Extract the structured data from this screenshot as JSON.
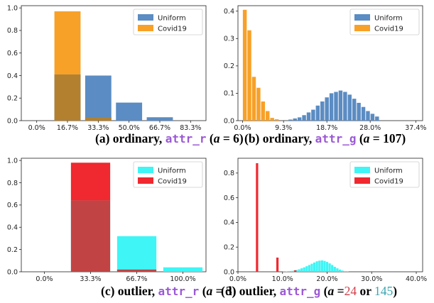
{
  "colors": {
    "blue": "#5b8cc3",
    "orange": "#f7a128",
    "orange_overlap": "#b3802f",
    "cyan": "#3ff5f5",
    "red": "#f0282f",
    "red_overlap": "#c24343",
    "attr_purple": "#9b59d6",
    "num_teal": "#3aa6b0",
    "num_red": "#d1404a"
  },
  "chart_data": [
    {
      "type": "bar",
      "panel": "a",
      "overlay": true,
      "xticks": [
        "0.0%",
        "16.7%",
        "33.3%",
        "50.0%",
        "66.7%",
        "83.3%"
      ],
      "yticks": [
        "0.0",
        "0.2",
        "0.4",
        "0.6",
        "0.8",
        "1.0"
      ],
      "ylim": [
        0,
        1.02
      ],
      "xlim": [
        -0.5,
        5.5
      ],
      "legend_position": "top-right",
      "grid": false,
      "series": [
        {
          "name": "Uniform",
          "color_key": "blue",
          "x": [
            1,
            2,
            3,
            4
          ],
          "values": [
            0.41,
            0.4,
            0.16,
            0.03
          ]
        },
        {
          "name": "Covid19",
          "color_key": "orange",
          "x": [
            1,
            2
          ],
          "values": [
            0.97,
            0.03
          ]
        }
      ],
      "caption": {
        "prefix": "(a) ordinary, ",
        "attr": "attr_r",
        "suffix_open": " (",
        "a": "a",
        "eq": " = 6)",
        "num": ""
      }
    },
    {
      "type": "bar",
      "panel": "b",
      "overlay": true,
      "xticks": [
        "0.0%",
        "9.3%",
        "18.7%",
        "28.0%",
        "37.4%"
      ],
      "yticks": [
        "0.0",
        "0.1",
        "0.2",
        "0.3",
        "0.4"
      ],
      "ylim": [
        0,
        0.42
      ],
      "xlim": [
        -0.5,
        40
      ],
      "legend_position": "top-right",
      "grid": false,
      "series": [
        {
          "name": "Uniform",
          "color_key": "blue",
          "x": [
            11,
            12,
            13,
            14,
            15,
            16,
            17,
            18,
            19,
            20,
            21,
            22,
            23,
            24,
            25,
            26,
            27,
            28,
            29,
            30
          ],
          "values": [
            0.004,
            0.008,
            0.012,
            0.02,
            0.03,
            0.04,
            0.055,
            0.07,
            0.085,
            0.1,
            0.105,
            0.11,
            0.105,
            0.095,
            0.08,
            0.065,
            0.05,
            0.035,
            0.025,
            0.015
          ]
        },
        {
          "name": "Covid19",
          "color_key": "orange",
          "x": [
            1,
            2,
            3,
            4,
            5,
            6,
            7,
            8
          ],
          "values": [
            0.405,
            0.33,
            0.16,
            0.12,
            0.07,
            0.035,
            0.01,
            0.005
          ]
        }
      ],
      "caption": {
        "prefix": "(b) ordinary, ",
        "attr": "attr_g",
        "suffix_open": " (",
        "a": "a",
        "eq": " = 107)",
        "num": ""
      }
    },
    {
      "type": "bar",
      "panel": "c",
      "overlay": true,
      "xticks": [
        "0.0%",
        "33.3%",
        "66.7%",
        "100.0%"
      ],
      "yticks": [
        "0.0",
        "0.2",
        "0.4",
        "0.6",
        "0.8",
        "1.0"
      ],
      "ylim": [
        0,
        1.02
      ],
      "xlim": [
        -0.5,
        3.5
      ],
      "legend_position": "top-right",
      "grid": false,
      "series": [
        {
          "name": "Uniform",
          "color_key": "cyan",
          "x": [
            1,
            2,
            3
          ],
          "values": [
            0.64,
            0.32,
            0.04
          ]
        },
        {
          "name": "Covid19",
          "color_key": "red",
          "x": [
            1,
            2
          ],
          "values": [
            0.98,
            0.02
          ]
        }
      ],
      "caption": {
        "prefix": "(c) outlier, ",
        "attr": "attr_r",
        "suffix_open": " (",
        "a": "a",
        "eq": " = 3)",
        "num": ""
      }
    },
    {
      "type": "bar",
      "panel": "d",
      "overlay": true,
      "xticks": [
        "0.0%",
        "10.0%",
        "20.0%",
        "30.0%",
        "40.0%"
      ],
      "yticks": [
        "0.0",
        "0.2",
        "0.4",
        "0.6",
        "0.8"
      ],
      "ylim": [
        0,
        0.92
      ],
      "xlim": [
        0,
        145
      ],
      "legend_position": "top-right",
      "grid": false,
      "series": [
        {
          "name": "Uniform",
          "color_key": "cyan",
          "x": [
            36,
            38,
            40,
            42,
            44,
            46,
            48,
            50,
            52,
            54,
            56,
            58,
            60,
            62,
            64,
            66,
            68,
            70,
            72,
            74,
            76,
            78,
            80,
            82,
            84,
            86
          ],
          "values": [
            0.002,
            0.003,
            0.005,
            0.007,
            0.01,
            0.014,
            0.02,
            0.028,
            0.036,
            0.045,
            0.055,
            0.065,
            0.075,
            0.085,
            0.09,
            0.092,
            0.088,
            0.08,
            0.068,
            0.055,
            0.04,
            0.028,
            0.018,
            0.01,
            0.005,
            0.002
          ]
        },
        {
          "name": "Covid19",
          "color_key": "red",
          "x": [
            15,
            31,
            45
          ],
          "values": [
            0.88,
            0.115,
            0.012
          ]
        }
      ],
      "caption": {
        "prefix": "(d) outlier, ",
        "attr": "attr_g",
        "suffix_open": " (",
        "a": "a",
        "eq": " =",
        "num1": "24",
        "or": " or ",
        "num2": "145",
        "close": ")"
      }
    }
  ]
}
